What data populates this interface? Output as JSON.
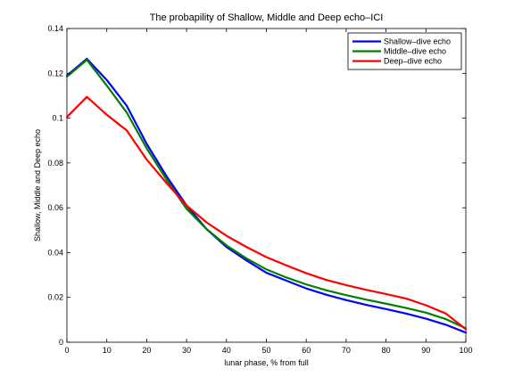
{
  "chart_data": {
    "type": "line",
    "title": "The probapility of Shallow, Middle and Deep echo–ICI",
    "xlabel": "lunar phase, % from full",
    "ylabel": "Shallow, Middle and Deep echo",
    "xlim": [
      0,
      100
    ],
    "ylim": [
      0,
      0.14
    ],
    "x_ticks": [
      0,
      10,
      20,
      30,
      40,
      50,
      60,
      70,
      80,
      90,
      100
    ],
    "y_ticks": [
      0,
      0.02,
      0.04,
      0.06,
      0.08,
      0.1,
      0.12,
      0.14
    ],
    "x_tick_labels": [
      "0",
      "10",
      "20",
      "30",
      "40",
      "50",
      "60",
      "70",
      "80",
      "90",
      "100"
    ],
    "y_tick_labels": [
      "0",
      "0.02",
      "0.04",
      "0.06",
      "0.08",
      "0.1",
      "0.12",
      "0.14"
    ],
    "grid": false,
    "legend_position": "top-right",
    "x": [
      0,
      5,
      10,
      15,
      20,
      25,
      30,
      35,
      40,
      45,
      50,
      55,
      60,
      65,
      70,
      75,
      80,
      85,
      90,
      95,
      100
    ],
    "series": [
      {
        "name": "Shallow–dive echo",
        "color": "#0000ff",
        "values": [
          0.119,
          0.1265,
          0.117,
          0.1055,
          0.0885,
          0.074,
          0.061,
          0.0505,
          0.0425,
          0.0365,
          0.031,
          0.0275,
          0.024,
          0.0212,
          0.0188,
          0.0167,
          0.0148,
          0.0128,
          0.0105,
          0.0078,
          0.0043
        ]
      },
      {
        "name": "Middle–dive echo",
        "color": "#008000",
        "values": [
          0.1185,
          0.126,
          0.1145,
          0.1025,
          0.0865,
          0.0725,
          0.0595,
          0.0505,
          0.0432,
          0.0374,
          0.0325,
          0.0289,
          0.0258,
          0.0232,
          0.021,
          0.019,
          0.0172,
          0.0153,
          0.0132,
          0.0103,
          0.0062
        ]
      },
      {
        "name": "Deep–dive echo",
        "color": "#ff0000",
        "values": [
          0.1005,
          0.1095,
          0.1015,
          0.0945,
          0.0815,
          0.071,
          0.061,
          0.0535,
          0.0475,
          0.0425,
          0.038,
          0.0343,
          0.0308,
          0.0278,
          0.0255,
          0.0234,
          0.0215,
          0.0195,
          0.0165,
          0.0128,
          0.0058
        ]
      }
    ]
  }
}
